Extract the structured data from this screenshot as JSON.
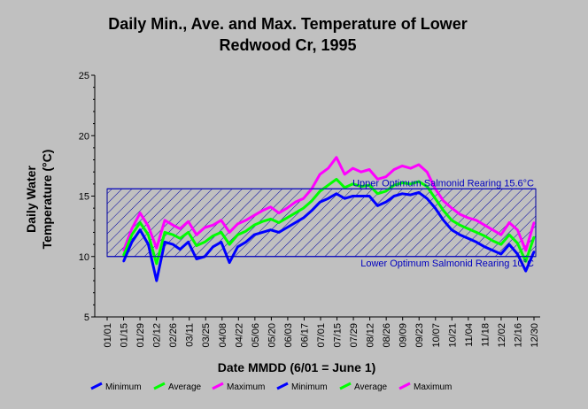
{
  "chart_data": {
    "type": "line",
    "title": "Daily Min., Ave. and Max. Temperature of Lower Redwood Cr, 1995",
    "title_lines": [
      "Daily Min., Ave. and Max. Temperature of Lower",
      "Redwood Cr, 1995"
    ],
    "xlabel": "Date MMDD (6/01 = June 1)",
    "ylabel_lines": [
      "Daily Water",
      "Temperature (°C)"
    ],
    "ylim": [
      5,
      25
    ],
    "yticks": [
      5,
      10,
      15,
      20,
      25
    ],
    "xticks": [
      "01/01",
      "01/15",
      "01/29",
      "02/12",
      "02/26",
      "03/11",
      "03/25",
      "04/08",
      "04/22",
      "05/06",
      "05/20",
      "06/03",
      "06/17",
      "07/01",
      "07/15",
      "07/29",
      "08/12",
      "08/26",
      "09/09",
      "09/23",
      "10/07",
      "10/21",
      "11/04",
      "11/18",
      "12/02",
      "12/16",
      "12/30"
    ],
    "grid": false,
    "legend_position": "bottom",
    "legend": [
      {
        "name": "Minimum",
        "color": "#0000ff"
      },
      {
        "name": "Average",
        "color": "#00ff00"
      },
      {
        "name": "Maximum",
        "color": "#ff00ff"
      },
      {
        "name": "Minimum",
        "color": "#0000ff"
      },
      {
        "name": "Average",
        "color": "#00ff00"
      },
      {
        "name": "Maximum",
        "color": "#ff00ff"
      }
    ],
    "thresholds": [
      {
        "label": "Upper Optimum Salmonid Rearing 15.6°C",
        "value": 15.6
      },
      {
        "label": "Lower Optimum Salmonid Rearing 10°C",
        "value": 10
      }
    ],
    "series": [
      {
        "name": "Maximum",
        "color": "#ff00ff",
        "x": [
          "01/15",
          "01/22",
          "01/29",
          "02/05",
          "02/12",
          "02/19",
          "02/26",
          "03/04",
          "03/11",
          "03/18",
          "03/25",
          "04/01",
          "04/08",
          "04/15",
          "04/22",
          "04/29",
          "05/06",
          "05/13",
          "05/20",
          "05/27",
          "06/03",
          "06/10",
          "06/17",
          "06/24",
          "07/01",
          "07/08",
          "07/15",
          "07/22",
          "07/29",
          "08/05",
          "08/12",
          "08/19",
          "08/26",
          "09/02",
          "09/09",
          "09/16",
          "09/23",
          "09/30",
          "10/07",
          "10/14",
          "10/21",
          "10/28",
          "11/04",
          "11/11",
          "11/18",
          "11/25",
          "12/02",
          "12/09",
          "12/16",
          "12/23",
          "12/30"
        ],
        "values": [
          10.5,
          12.3,
          13.6,
          12.5,
          10.7,
          13.0,
          12.6,
          12.3,
          12.9,
          11.8,
          12.4,
          12.6,
          13.0,
          12.0,
          12.7,
          13.0,
          13.4,
          13.8,
          14.1,
          13.6,
          14.0,
          14.5,
          14.8,
          15.6,
          16.8,
          17.3,
          18.2,
          16.8,
          17.3,
          17.0,
          17.2,
          16.4,
          16.6,
          17.2,
          17.5,
          17.3,
          17.6,
          17.0,
          15.6,
          14.6,
          14.0,
          13.5,
          13.2,
          13.0,
          12.6,
          12.2,
          11.8,
          12.8,
          12.2,
          10.5,
          12.8
        ]
      },
      {
        "name": "Average",
        "color": "#00ff00",
        "x": [
          "01/15",
          "01/22",
          "01/29",
          "02/05",
          "02/12",
          "02/19",
          "02/26",
          "03/04",
          "03/11",
          "03/18",
          "03/25",
          "04/01",
          "04/08",
          "04/15",
          "04/22",
          "04/29",
          "05/06",
          "05/13",
          "05/20",
          "05/27",
          "06/03",
          "06/10",
          "06/17",
          "06/24",
          "07/01",
          "07/08",
          "07/15",
          "07/22",
          "07/29",
          "08/05",
          "08/12",
          "08/19",
          "08/26",
          "09/02",
          "09/09",
          "09/16",
          "09/23",
          "09/30",
          "10/07",
          "10/14",
          "10/21",
          "10/28",
          "11/04",
          "11/11",
          "11/18",
          "11/25",
          "12/02",
          "12/09",
          "12/16",
          "12/23",
          "12/30"
        ],
        "values": [
          10.1,
          11.8,
          12.8,
          11.8,
          9.4,
          12.0,
          11.8,
          11.5,
          12.0,
          10.9,
          11.2,
          11.7,
          12.0,
          11.0,
          11.8,
          12.1,
          12.6,
          12.9,
          13.1,
          12.8,
          13.2,
          13.6,
          14.0,
          14.6,
          15.4,
          15.9,
          16.4,
          15.7,
          16.0,
          15.8,
          15.9,
          15.2,
          15.4,
          15.9,
          16.1,
          16.0,
          16.2,
          15.8,
          14.8,
          13.8,
          13.0,
          12.6,
          12.3,
          12.0,
          11.7,
          11.3,
          11.0,
          11.8,
          11.1,
          9.6,
          11.6
        ]
      },
      {
        "name": "Minimum",
        "color": "#0000ff",
        "x": [
          "01/15",
          "01/22",
          "01/29",
          "02/05",
          "02/12",
          "02/19",
          "02/26",
          "03/04",
          "03/11",
          "03/18",
          "03/25",
          "04/01",
          "04/08",
          "04/15",
          "04/22",
          "04/29",
          "05/06",
          "05/13",
          "05/20",
          "05/27",
          "06/03",
          "06/10",
          "06/17",
          "06/24",
          "07/01",
          "07/08",
          "07/15",
          "07/22",
          "07/29",
          "08/05",
          "08/12",
          "08/19",
          "08/26",
          "09/02",
          "09/09",
          "09/16",
          "09/23",
          "09/30",
          "10/07",
          "10/14",
          "10/21",
          "10/28",
          "11/04",
          "11/11",
          "11/18",
          "11/25",
          "12/02",
          "12/09",
          "12/16",
          "12/23",
          "12/30"
        ],
        "values": [
          9.6,
          11.2,
          12.2,
          11.0,
          8.0,
          11.2,
          11.0,
          10.6,
          11.2,
          9.8,
          10.0,
          10.8,
          11.2,
          9.5,
          10.8,
          11.2,
          11.8,
          12.0,
          12.2,
          12.0,
          12.4,
          12.8,
          13.2,
          13.8,
          14.5,
          14.8,
          15.2,
          14.8,
          15.0,
          15.0,
          15.0,
          14.2,
          14.5,
          15.0,
          15.2,
          15.1,
          15.3,
          14.8,
          14.0,
          13.0,
          12.2,
          11.8,
          11.5,
          11.2,
          10.8,
          10.5,
          10.2,
          11.0,
          10.2,
          8.8,
          10.4
        ]
      }
    ]
  }
}
